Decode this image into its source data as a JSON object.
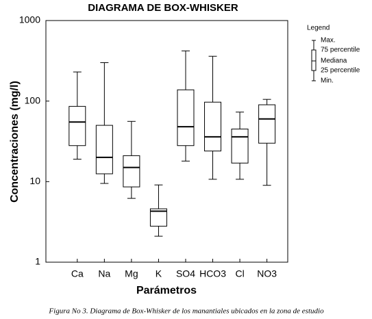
{
  "chart_data": {
    "type": "box",
    "title": "DIAGRAMA DE BOX-WHISKER",
    "y_label": "Concentraciones  (mg/l)",
    "x_label": "Parámetros",
    "caption": "Figura No 3. Diagrama de Box-Whisker de los manantiales ubicados en la zona de estudio",
    "categories": [
      "Ca",
      "Na",
      "Mg",
      "K",
      "SO4",
      "HCO3",
      "Cl",
      "NO3"
    ],
    "max": [
      230,
      300,
      56,
      9.1,
      420,
      360,
      73,
      105
    ],
    "q3": [
      86,
      50,
      21,
      4.6,
      138,
      97,
      45,
      90
    ],
    "median": [
      55,
      20,
      15,
      4.3,
      48,
      36,
      36,
      60
    ],
    "q1": [
      28,
      12.5,
      8.6,
      2.8,
      28,
      24,
      17,
      30
    ],
    "min": [
      19,
      9.5,
      6.2,
      2.1,
      18,
      10.7,
      10.7,
      9
    ],
    "ylim": [
      1,
      1000
    ],
    "yticks": [
      1,
      10,
      100,
      1000
    ],
    "log_y": true,
    "color": "#000000",
    "legend": {
      "title": "Legend",
      "items": [
        "Max.",
        "75 percentile",
        "Mediana",
        "25 percentile",
        "Min."
      ]
    }
  }
}
